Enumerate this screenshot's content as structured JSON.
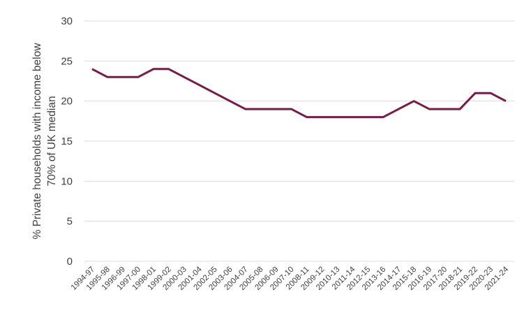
{
  "chart_data": {
    "type": "line",
    "title": "",
    "xlabel": "",
    "ylabel": "% Private households with income below 70% of UK median",
    "ylabel_lines": [
      "% Private households with income below",
      "70% of UK median"
    ],
    "ylim": [
      0,
      30
    ],
    "yticks": [
      0,
      5,
      10,
      15,
      20,
      25,
      30
    ],
    "grid": true,
    "legend": null,
    "categories": [
      "1994-97",
      "1995-98",
      "1996-99",
      "1997-00",
      "1998-01",
      "1999-02",
      "2000-03",
      "2001-04",
      "2002-05",
      "2003-06",
      "2004-07",
      "2005-08",
      "2006-09",
      "2007-10",
      "2008-11",
      "2009-12",
      "2010-13",
      "2011-14",
      "2012-15",
      "2013-16",
      "2014-17",
      "2015-18",
      "2016-19",
      "2017-20",
      "2018-21",
      "2019-22",
      "2020-23",
      "2021-24"
    ],
    "series": [
      {
        "name": "% Private households with income below 70% of UK median",
        "color": "#7b1a45",
        "values": [
          24,
          23,
          23,
          23,
          24,
          24,
          23,
          22,
          21,
          20,
          19,
          19,
          19,
          19,
          18,
          18,
          18,
          18,
          18,
          18,
          19,
          20,
          19,
          19,
          19,
          21,
          21,
          20
        ]
      }
    ]
  }
}
